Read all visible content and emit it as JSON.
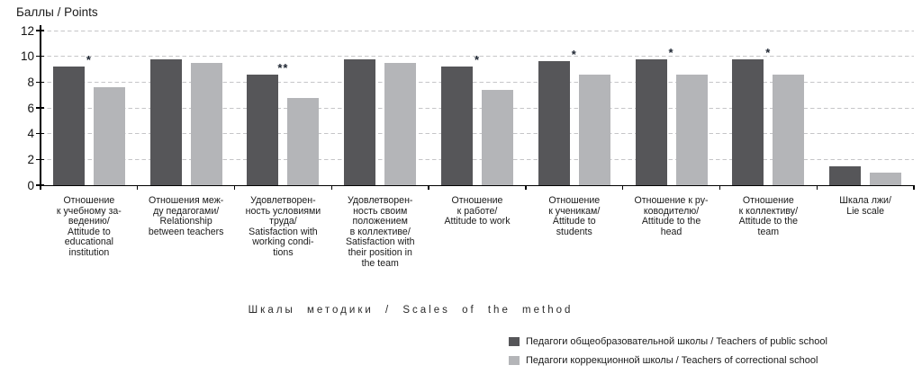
{
  "chart_data": {
    "type": "bar",
    "y_axis_title": "Баллы / Points",
    "x_axis_title": "Шкалы методики / Scales of the method",
    "ylim": [
      0,
      12
    ],
    "ytick_step": 2,
    "grid": "horizontal-dashed",
    "legend_position": "bottom-right",
    "categories": [
      "Отношение\nк учебному за-\nведению/\nAttitude to\neducational\ninstitution",
      "Отношения меж-\nду педагогами/\nRelationship\nbetween teachers",
      "Удовлетворен-\nность условиями\nтруда/\nSatisfaction with\nworking condi-\ntions",
      "Удовлетворен-\nность своим\nположением\nв коллективе/\nSatisfaction with\ntheir position in\nthe team",
      "Отношение\nк работе/\nAttitude to work",
      "Отношение\nк ученикам/\nAttitude to\nstudents",
      "Отношение к ру-\nководителю/\nAttitude to the\nhead",
      "Отношение\nк коллективу/\nAttitude to the\nteam",
      "Шкала лжи/\nLie scale"
    ],
    "series": [
      {
        "name": "Педагоги общеобразовательной школы / Teachers of public school",
        "color": "#565659",
        "values": [
          9.2,
          9.8,
          8.6,
          9.8,
          9.2,
          9.6,
          9.8,
          9.8,
          1.5
        ]
      },
      {
        "name": "Педагоги коррекционной школы / Teachers of correctional school",
        "color": "#b4b5b8",
        "values": [
          7.6,
          9.5,
          6.8,
          9.5,
          7.4,
          8.6,
          8.6,
          8.6,
          1.0
        ]
      }
    ],
    "significance_markers": [
      "*",
      "",
      "**",
      "",
      "*",
      "*",
      "*",
      "*",
      ""
    ]
  },
  "colors": {
    "axis": "#000000",
    "gridline": "#c6c6c8",
    "text": "#1a1a1a"
  }
}
